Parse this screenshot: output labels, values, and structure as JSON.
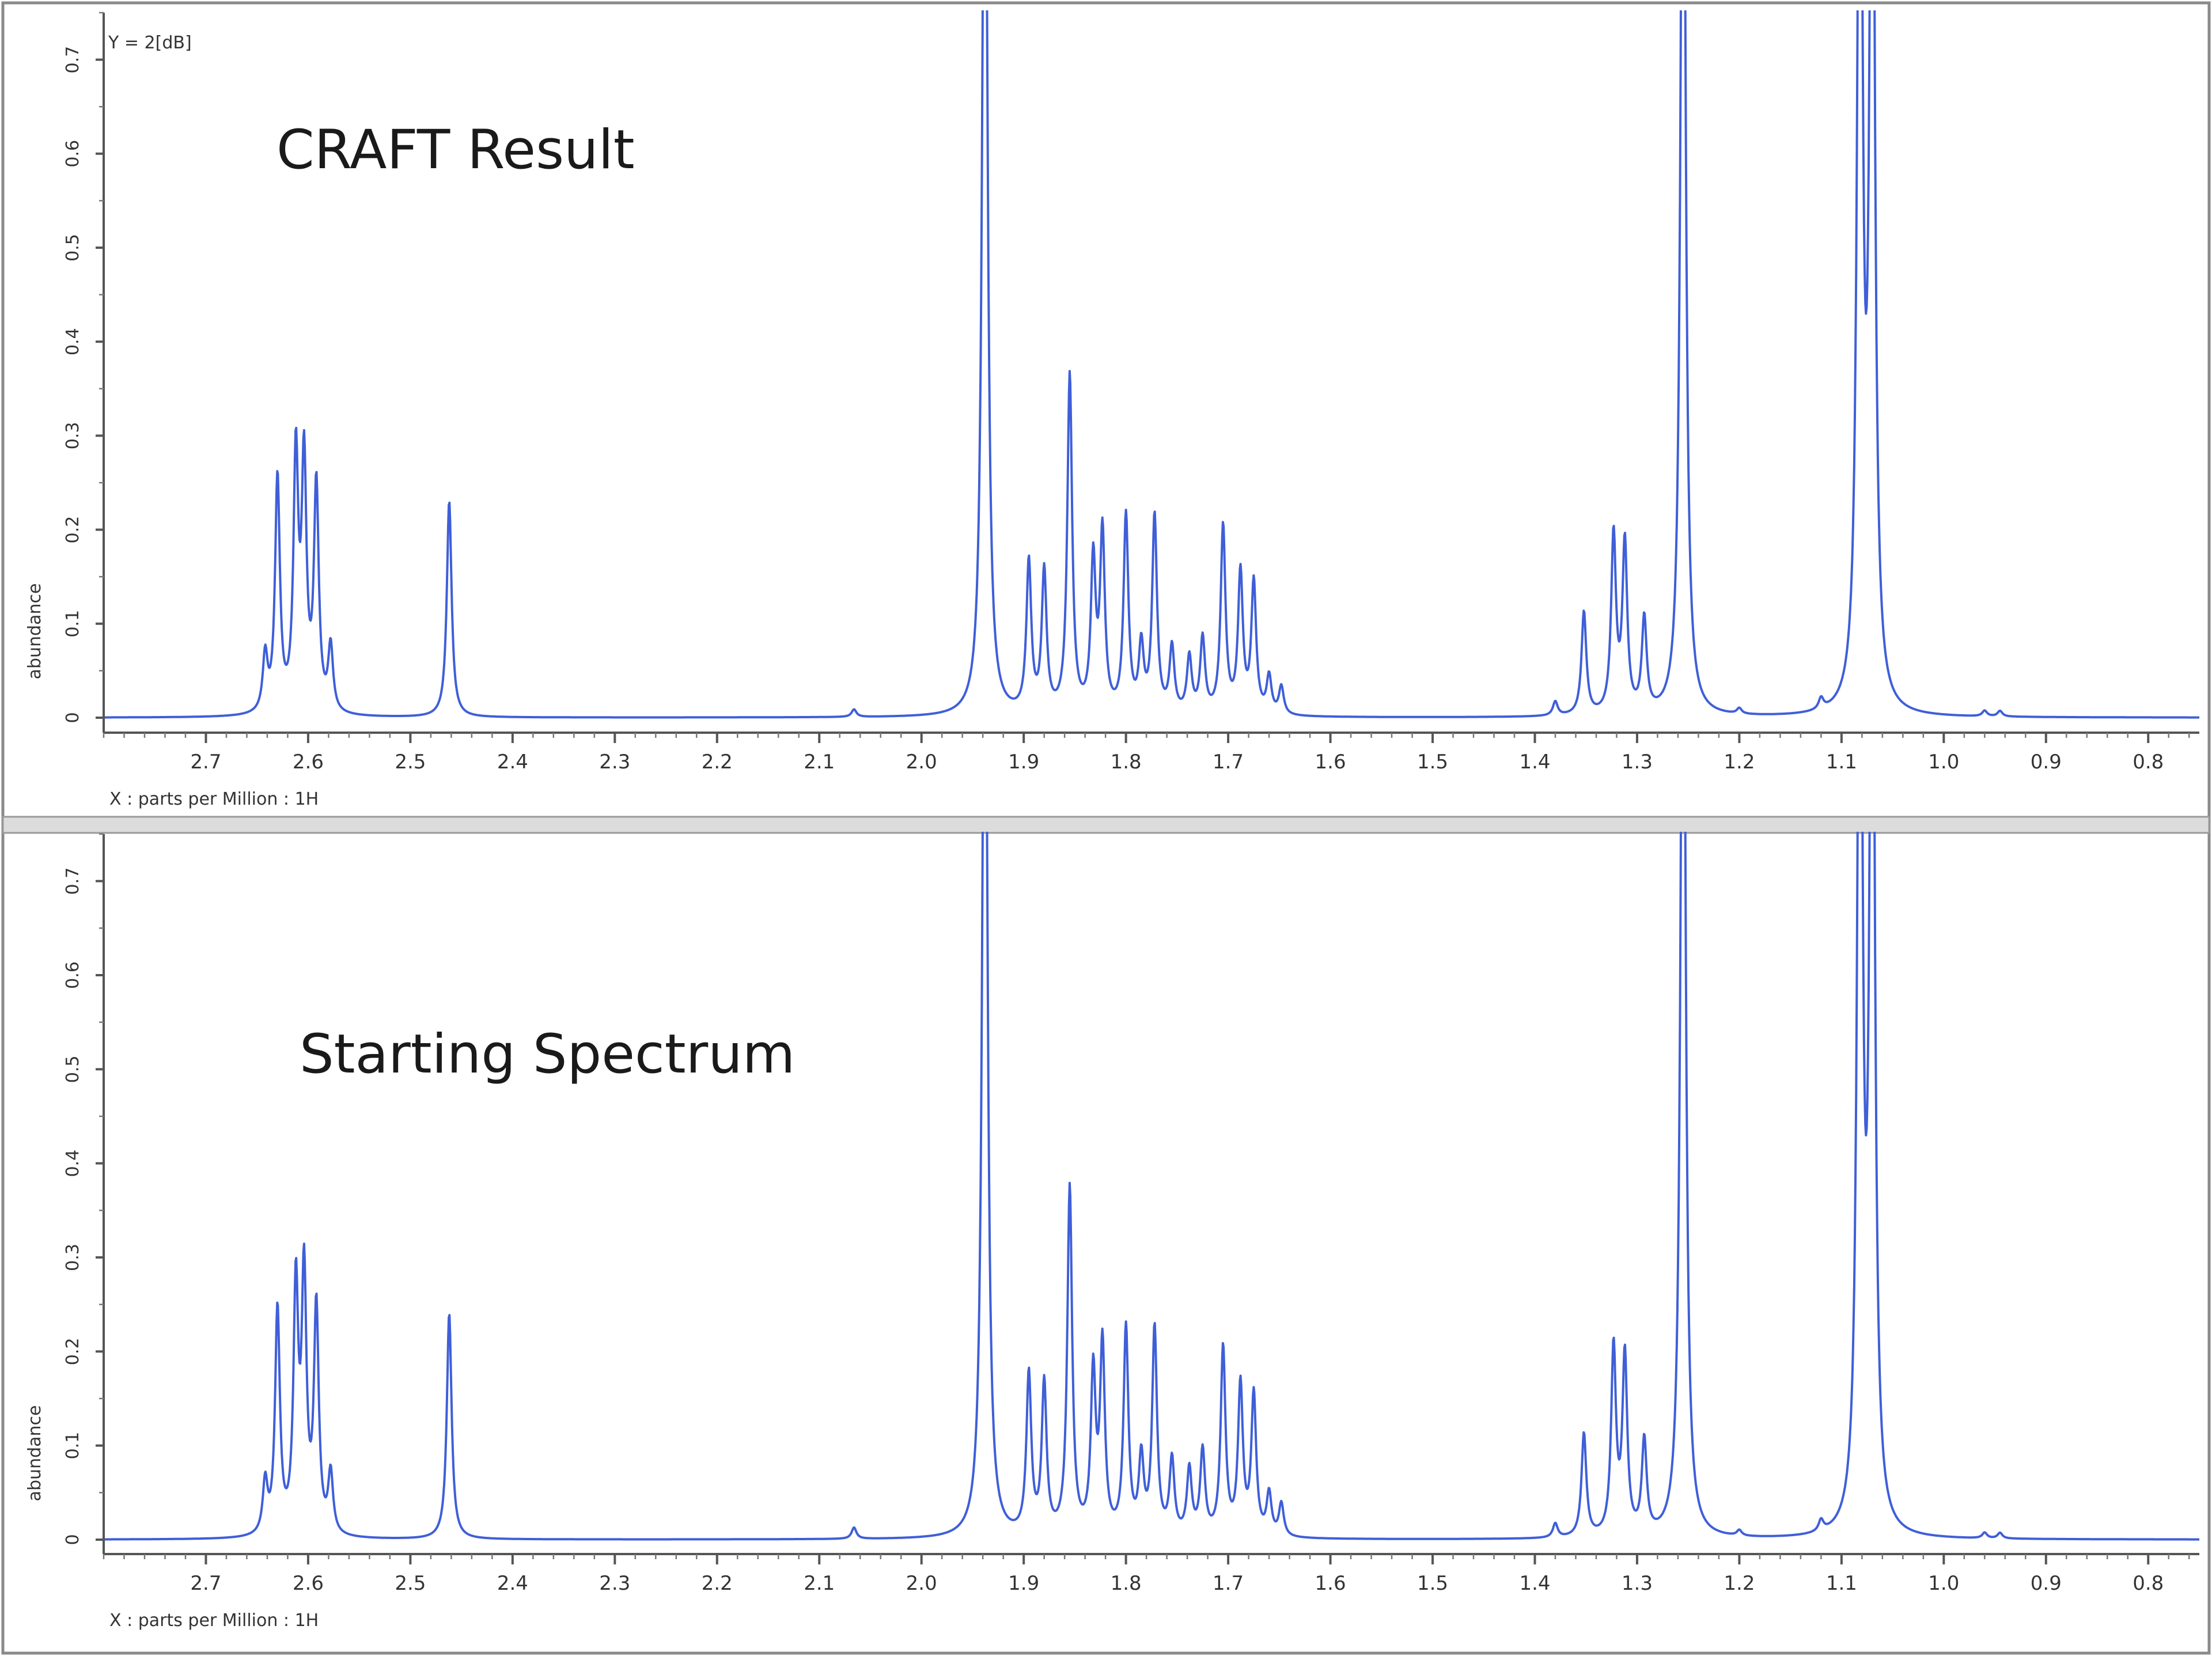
{
  "chart_data": [
    {
      "type": "line",
      "title": "CRAFT Result",
      "corner_label": "Y = 2[dB]",
      "xlabel": "X : parts per Million : 1H",
      "ylabel": "abundance",
      "xlim": [
        2.8,
        0.75
      ],
      "ylim": [
        0,
        0.75
      ],
      "x_ticks": [
        2.7,
        2.6,
        2.5,
        2.4,
        2.3,
        2.2,
        2.1,
        2.0,
        1.9,
        1.8,
        1.7,
        1.6,
        1.5,
        1.4,
        1.3,
        1.2,
        1.1,
        1.0,
        0.9,
        0.8
      ],
      "x_tick_labels": [
        "2.7",
        "2.6",
        "2.5",
        "2.4",
        "2.3",
        "2.2",
        "2.1",
        "2.0",
        "1.9",
        "1.8",
        "1.7",
        "1.6",
        "1.5",
        "1.4",
        "1.3",
        "1.2",
        "1.1",
        "1.0",
        "0.9",
        "0.8"
      ],
      "y_ticks": [
        0,
        0.1,
        0.2,
        0.3,
        0.4,
        0.5,
        0.6,
        0.7
      ],
      "y_tick_labels": [
        "0",
        "0.1",
        "0.2",
        "0.3",
        "0.4",
        "0.5",
        "0.6",
        "0.7"
      ],
      "grid": false,
      "color": "#3f5fd8",
      "peaks": [
        {
          "x": 2.642,
          "y": 0.06
        },
        {
          "x": 2.63,
          "y": 0.25
        },
        {
          "x": 2.612,
          "y": 0.27
        },
        {
          "x": 2.604,
          "y": 0.26
        },
        {
          "x": 2.592,
          "y": 0.24
        },
        {
          "x": 2.578,
          "y": 0.07
        },
        {
          "x": 2.462,
          "y": 0.23
        },
        {
          "x": 2.066,
          "y": 0.008
        },
        {
          "x": 1.938,
          "y": 1.2
        },
        {
          "x": 1.895,
          "y": 0.16
        },
        {
          "x": 1.88,
          "y": 0.15
        },
        {
          "x": 1.855,
          "y": 0.36
        },
        {
          "x": 1.832,
          "y": 0.16
        },
        {
          "x": 1.823,
          "y": 0.19
        },
        {
          "x": 1.8,
          "y": 0.21
        },
        {
          "x": 1.785,
          "y": 0.07
        },
        {
          "x": 1.772,
          "y": 0.21
        },
        {
          "x": 1.755,
          "y": 0.07
        },
        {
          "x": 1.738,
          "y": 0.06
        },
        {
          "x": 1.725,
          "y": 0.08
        },
        {
          "x": 1.705,
          "y": 0.2
        },
        {
          "x": 1.688,
          "y": 0.15
        },
        {
          "x": 1.675,
          "y": 0.14
        },
        {
          "x": 1.66,
          "y": 0.04
        },
        {
          "x": 1.648,
          "y": 0.03
        },
        {
          "x": 1.38,
          "y": 0.015
        },
        {
          "x": 1.352,
          "y": 0.11
        },
        {
          "x": 1.323,
          "y": 0.19
        },
        {
          "x": 1.312,
          "y": 0.18
        },
        {
          "x": 1.293,
          "y": 0.1
        },
        {
          "x": 1.255,
          "y": 1.2
        },
        {
          "x": 1.2,
          "y": 0.006
        },
        {
          "x": 1.12,
          "y": 0.012
        },
        {
          "x": 1.082,
          "y": 1.2
        },
        {
          "x": 1.07,
          "y": 1.2
        },
        {
          "x": 0.96,
          "y": 0.006
        },
        {
          "x": 0.945,
          "y": 0.006
        }
      ]
    },
    {
      "type": "line",
      "title": "Starting Spectrum",
      "xlabel": "X : parts per Million : 1H",
      "ylabel": "abundance",
      "xlim": [
        2.8,
        0.75
      ],
      "ylim": [
        0,
        0.75
      ],
      "x_ticks": [
        2.7,
        2.6,
        2.5,
        2.4,
        2.3,
        2.2,
        2.1,
        2.0,
        1.9,
        1.8,
        1.7,
        1.6,
        1.5,
        1.4,
        1.3,
        1.2,
        1.1,
        1.0,
        0.9,
        0.8
      ],
      "x_tick_labels": [
        "2.7",
        "2.6",
        "2.5",
        "2.4",
        "2.3",
        "2.2",
        "2.1",
        "2.0",
        "1.9",
        "1.8",
        "1.7",
        "1.6",
        "1.5",
        "1.4",
        "1.3",
        "1.2",
        "1.1",
        "1.0",
        "0.9",
        "0.8"
      ],
      "y_ticks": [
        0,
        0.1,
        0.2,
        0.3,
        0.4,
        0.5,
        0.6,
        0.7
      ],
      "y_tick_labels": [
        "0",
        "0.1",
        "0.2",
        "0.3",
        "0.4",
        "0.5",
        "0.6",
        "0.7"
      ],
      "grid": false,
      "color": "#3f5fd8",
      "peaks": [
        {
          "x": 2.642,
          "y": 0.055
        },
        {
          "x": 2.63,
          "y": 0.24
        },
        {
          "x": 2.612,
          "y": 0.26
        },
        {
          "x": 2.604,
          "y": 0.27
        },
        {
          "x": 2.592,
          "y": 0.24
        },
        {
          "x": 2.578,
          "y": 0.065
        },
        {
          "x": 2.462,
          "y": 0.24
        },
        {
          "x": 2.066,
          "y": 0.012
        },
        {
          "x": 1.938,
          "y": 1.2
        },
        {
          "x": 1.895,
          "y": 0.17
        },
        {
          "x": 1.88,
          "y": 0.16
        },
        {
          "x": 1.855,
          "y": 0.37
        },
        {
          "x": 1.832,
          "y": 0.17
        },
        {
          "x": 1.823,
          "y": 0.2
        },
        {
          "x": 1.8,
          "y": 0.22
        },
        {
          "x": 1.785,
          "y": 0.08
        },
        {
          "x": 1.772,
          "y": 0.22
        },
        {
          "x": 1.755,
          "y": 0.08
        },
        {
          "x": 1.738,
          "y": 0.07
        },
        {
          "x": 1.725,
          "y": 0.09
        },
        {
          "x": 1.705,
          "y": 0.2
        },
        {
          "x": 1.688,
          "y": 0.16
        },
        {
          "x": 1.675,
          "y": 0.15
        },
        {
          "x": 1.66,
          "y": 0.045
        },
        {
          "x": 1.648,
          "y": 0.035
        },
        {
          "x": 1.38,
          "y": 0.015
        },
        {
          "x": 1.352,
          "y": 0.11
        },
        {
          "x": 1.323,
          "y": 0.2
        },
        {
          "x": 1.312,
          "y": 0.19
        },
        {
          "x": 1.293,
          "y": 0.1
        },
        {
          "x": 1.255,
          "y": 1.2
        },
        {
          "x": 1.2,
          "y": 0.006
        },
        {
          "x": 1.12,
          "y": 0.012
        },
        {
          "x": 1.082,
          "y": 1.2
        },
        {
          "x": 1.07,
          "y": 1.2
        },
        {
          "x": 0.96,
          "y": 0.006
        },
        {
          "x": 0.945,
          "y": 0.006
        }
      ]
    }
  ]
}
